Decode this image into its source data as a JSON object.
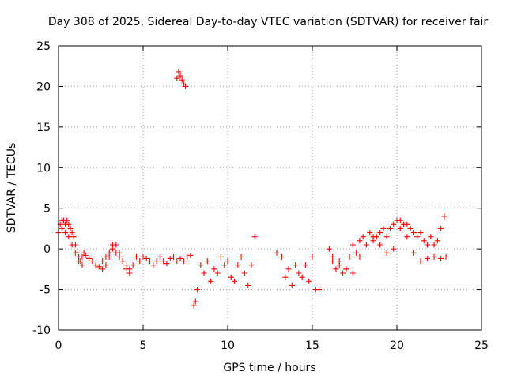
{
  "chart_data": {
    "type": "scatter",
    "title": "Day 308 of 2025, Sidereal Day-to-day VTEC variation (SDTVAR) for receiver fair",
    "xlabel": "GPS time / hours",
    "ylabel": "SDTVAR / TECUs",
    "xlim": [
      0,
      25
    ],
    "ylim": [
      -10,
      25
    ],
    "xticks": [
      "0",
      "5",
      "10",
      "15",
      "20",
      "25"
    ],
    "yticks": [
      "-10",
      "-5",
      "0",
      "5",
      "10",
      "15",
      "20",
      "25"
    ],
    "grid": true,
    "marker": "+",
    "color": "#ff0000",
    "series": [
      {
        "name": "SDTVAR",
        "x": [
          0.0,
          0.1,
          0.2,
          0.3,
          0.4,
          0.5,
          0.6,
          0.7,
          0.8,
          0.9,
          1.0,
          1.1,
          1.2,
          1.3,
          1.4,
          1.5,
          1.6,
          1.8,
          2.0,
          2.2,
          2.4,
          2.6,
          2.8,
          3.0,
          3.2,
          3.4,
          3.6,
          3.8,
          4.0,
          4.2,
          4.4,
          4.6,
          4.8,
          5.0,
          5.2,
          5.4,
          5.6,
          5.8,
          6.0,
          6.2,
          6.4,
          6.6,
          6.8,
          7.0,
          7.2,
          7.4,
          7.6,
          7.8,
          8.0,
          8.1,
          8.2,
          8.4,
          8.6,
          8.8,
          9.0,
          9.2,
          9.4,
          9.6,
          9.8,
          10.0,
          10.2,
          10.4,
          10.6,
          10.8,
          11.0,
          11.2,
          11.4,
          11.6,
          12.9,
          13.2,
          13.4,
          13.6,
          13.8,
          14.0,
          14.2,
          14.4,
          14.6,
          14.8,
          15.0,
          15.2,
          15.4,
          16.0,
          16.2,
          16.4,
          16.6,
          16.8,
          17.0,
          17.2,
          17.4,
          17.6,
          17.8,
          18.0,
          18.2,
          18.4,
          18.6,
          18.8,
          19.0,
          19.2,
          19.4,
          19.6,
          19.8,
          20.0,
          20.2,
          20.4,
          20.6,
          20.8,
          21.0,
          21.2,
          21.4,
          21.6,
          21.8,
          22.0,
          22.2,
          22.4,
          22.6,
          22.8,
          7.0,
          7.1,
          7.2,
          7.3,
          7.4,
          7.5,
          0.2,
          0.4,
          0.6,
          0.8,
          1.0,
          1.2,
          1.4,
          2.6,
          2.8,
          3.0,
          3.2,
          3.4,
          3.6,
          3.8,
          4.0,
          4.2,
          16.2,
          16.6,
          17.0,
          17.4,
          17.8,
          18.2,
          18.6,
          19.0,
          19.4,
          19.8,
          20.2,
          20.6,
          21.0,
          21.4,
          21.8,
          22.2,
          22.6,
          22.9
        ],
        "y": [
          2.0,
          3.0,
          3.5,
          3.5,
          3.0,
          3.5,
          3.0,
          2.5,
          2.0,
          1.5,
          0.5,
          -0.5,
          -1.0,
          -1.5,
          -1.0,
          -0.5,
          -0.8,
          -1.2,
          -1.5,
          -2.0,
          -2.2,
          -2.5,
          -2.0,
          -1.0,
          0.5,
          0.5,
          -0.5,
          -1.5,
          -2.5,
          -3.0,
          -2.0,
          -1.0,
          -1.5,
          -1.0,
          -1.2,
          -1.5,
          -2.0,
          -1.5,
          -1.0,
          -1.5,
          -1.8,
          -1.2,
          -1.0,
          -1.5,
          -1.2,
          -1.5,
          -1.0,
          -0.8,
          -7.0,
          -6.5,
          -5.0,
          -2.0,
          -3.0,
          -1.5,
          -4.0,
          -2.5,
          -3.0,
          -1.0,
          -2.0,
          -1.5,
          -3.5,
          -4.0,
          -2.0,
          -1.0,
          -3.0,
          -4.5,
          -2.0,
          1.5,
          -0.5,
          -1.0,
          -3.5,
          -2.5,
          -4.5,
          -2.0,
          -3.0,
          -3.5,
          -2.0,
          -4.0,
          -1.0,
          -5.0,
          -5.0,
          0.0,
          -1.5,
          -2.5,
          -2.0,
          -3.0,
          -2.5,
          -1.0,
          0.5,
          -0.5,
          1.0,
          1.5,
          0.5,
          2.0,
          1.0,
          1.5,
          2.0,
          2.5,
          1.5,
          2.5,
          3.0,
          3.5,
          3.5,
          3.0,
          3.0,
          2.5,
          2.0,
          1.5,
          2.0,
          1.0,
          0.5,
          1.5,
          0.5,
          1.0,
          2.5,
          4.0,
          21.0,
          21.8,
          21.3,
          20.8,
          20.3,
          20.0,
          2.5,
          2.0,
          1.5,
          0.5,
          -0.5,
          -1.5,
          -2.0,
          -1.5,
          -1.0,
          -0.5,
          0.0,
          -0.5,
          -1.0,
          -1.5,
          -2.0,
          -2.5,
          -1.0,
          -1.5,
          -2.5,
          -3.0,
          -1.0,
          0.5,
          1.5,
          0.5,
          -0.5,
          0.0,
          2.5,
          1.5,
          -0.5,
          -1.5,
          -1.2,
          -1.0,
          -1.2,
          -1.0
        ]
      }
    ]
  }
}
